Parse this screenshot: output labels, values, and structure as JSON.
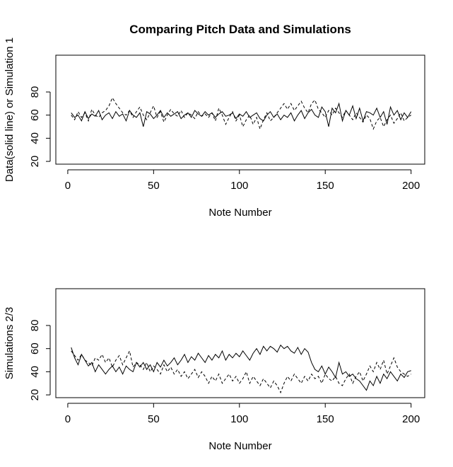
{
  "chart_data": [
    {
      "type": "line",
      "title": "Comparing Pitch Data and Simulations",
      "xlabel": "Note Number",
      "ylabel": "Data(solid line) or Simulation 1",
      "x": [
        2,
        4,
        6,
        8,
        10,
        12,
        14,
        16,
        18,
        20,
        22,
        24,
        26,
        28,
        30,
        32,
        34,
        36,
        38,
        40,
        42,
        44,
        46,
        48,
        50,
        52,
        54,
        56,
        58,
        60,
        62,
        64,
        66,
        68,
        70,
        72,
        74,
        76,
        78,
        80,
        82,
        84,
        86,
        88,
        90,
        92,
        94,
        96,
        98,
        100,
        102,
        104,
        106,
        108,
        110,
        112,
        114,
        116,
        118,
        120,
        122,
        124,
        126,
        128,
        130,
        132,
        134,
        136,
        138,
        140,
        142,
        144,
        146,
        148,
        150,
        152,
        154,
        156,
        158,
        160,
        162,
        164,
        166,
        168,
        170,
        172,
        174,
        176,
        178,
        180,
        182,
        184,
        186,
        188,
        190,
        192,
        194,
        196,
        198,
        200
      ],
      "series": [
        {
          "color": "#000000",
          "linestyle": "solid",
          "values": [
            62,
            58,
            60,
            55,
            63,
            57,
            61,
            59,
            64,
            56,
            60,
            62,
            57,
            63,
            59,
            61,
            55,
            64,
            60,
            58,
            62,
            50,
            63,
            61,
            57,
            60,
            64,
            58,
            62,
            59,
            61,
            63,
            57,
            60,
            62,
            58,
            64,
            61,
            59,
            63,
            60,
            62,
            58,
            61,
            63,
            59,
            60,
            62,
            57,
            61,
            59,
            63,
            58,
            60,
            62,
            57,
            55,
            60,
            63,
            58,
            61,
            56,
            60,
            58,
            62,
            55,
            60,
            64,
            57,
            62,
            65,
            60,
            58,
            67,
            63,
            50,
            66,
            62,
            70,
            55,
            64,
            60,
            68,
            57,
            66,
            55,
            63,
            62,
            60,
            66,
            58,
            63,
            52,
            67,
            60,
            64,
            56,
            62,
            58,
            63
          ]
        },
        {
          "color": "#000000",
          "linestyle": "dashed",
          "values": [
            60,
            56,
            63,
            58,
            62,
            55,
            65,
            60,
            58,
            62,
            64,
            68,
            75,
            70,
            66,
            62,
            60,
            64,
            58,
            63,
            67,
            60,
            56,
            62,
            68,
            58,
            63,
            54,
            60,
            65,
            61,
            59,
            64,
            58,
            62,
            60,
            57,
            63,
            59,
            61,
            58,
            62,
            55,
            66,
            60,
            52,
            58,
            63,
            55,
            60,
            50,
            56,
            60,
            52,
            58,
            48,
            56,
            62,
            55,
            58,
            62,
            66,
            70,
            65,
            70,
            64,
            68,
            72,
            66,
            62,
            70,
            73,
            65,
            62,
            58,
            64,
            60,
            66,
            62,
            58,
            64,
            60,
            56,
            62,
            58,
            54,
            60,
            57,
            48,
            55,
            58,
            50,
            56,
            60,
            53,
            57,
            62,
            55,
            58,
            60
          ]
        }
      ],
      "xlim": [
        -6.96,
        207.96
      ],
      "xticks": [
        0,
        50,
        100,
        150,
        200
      ],
      "ylim": [
        17.6,
        111.8
      ],
      "yticks": [
        20,
        40,
        60,
        80
      ]
    },
    {
      "type": "line",
      "xlabel": "Note Number",
      "ylabel": "Simulations 2/3",
      "x": [
        2,
        4,
        6,
        8,
        10,
        12,
        14,
        16,
        18,
        20,
        22,
        24,
        26,
        28,
        30,
        32,
        34,
        36,
        38,
        40,
        42,
        44,
        46,
        48,
        50,
        52,
        54,
        56,
        58,
        60,
        62,
        64,
        66,
        68,
        70,
        72,
        74,
        76,
        78,
        80,
        82,
        84,
        86,
        88,
        90,
        92,
        94,
        96,
        98,
        100,
        102,
        104,
        106,
        108,
        110,
        112,
        114,
        116,
        118,
        120,
        122,
        124,
        126,
        128,
        130,
        132,
        134,
        136,
        138,
        140,
        142,
        144,
        146,
        148,
        150,
        152,
        154,
        156,
        158,
        160,
        162,
        164,
        166,
        168,
        170,
        172,
        174,
        176,
        178,
        180,
        182,
        184,
        186,
        188,
        190,
        192,
        194,
        196,
        198,
        200
      ],
      "series": [
        {
          "color": "#000000",
          "linestyle": "solid",
          "values": [
            61,
            52,
            46,
            55,
            50,
            45,
            48,
            40,
            46,
            42,
            38,
            42,
            45,
            40,
            44,
            38,
            45,
            42,
            40,
            48,
            44,
            48,
            42,
            46,
            40,
            48,
            44,
            50,
            45,
            48,
            52,
            46,
            50,
            55,
            48,
            53,
            50,
            56,
            52,
            48,
            54,
            50,
            55,
            52,
            58,
            50,
            55,
            52,
            56,
            53,
            58,
            54,
            50,
            56,
            60,
            55,
            62,
            58,
            62,
            60,
            57,
            63,
            60,
            62,
            58,
            56,
            61,
            55,
            60,
            57,
            48,
            42,
            40,
            45,
            38,
            44,
            40,
            35,
            48,
            38,
            40,
            36,
            38,
            34,
            32,
            28,
            24,
            32,
            28,
            36,
            30,
            38,
            34,
            40,
            36,
            32,
            38,
            35,
            40,
            41
          ]
        },
        {
          "color": "#000000",
          "linestyle": "dashed",
          "values": [
            58,
            54,
            50,
            55,
            50,
            48,
            45,
            52,
            50,
            55,
            48,
            52,
            44,
            50,
            54,
            46,
            52,
            58,
            44,
            48,
            46,
            42,
            48,
            40,
            45,
            42,
            38,
            46,
            40,
            44,
            38,
            42,
            36,
            40,
            34,
            38,
            42,
            35,
            40,
            36,
            30,
            36,
            32,
            38,
            30,
            34,
            38,
            32,
            36,
            30,
            34,
            40,
            30,
            36,
            32,
            28,
            34,
            30,
            26,
            32,
            28,
            22,
            30,
            36,
            32,
            38,
            34,
            30,
            36,
            32,
            38,
            34,
            36,
            30,
            38,
            34,
            32,
            36,
            30,
            28,
            34,
            38,
            30,
            36,
            40,
            32,
            38,
            45,
            40,
            48,
            42,
            50,
            38,
            45,
            52,
            44,
            40,
            38,
            36,
            38
          ]
        }
      ],
      "xlim": [
        -6.96,
        207.96
      ],
      "xticks": [
        0,
        50,
        100,
        150,
        200
      ],
      "ylim": [
        17.6,
        111.8
      ],
      "yticks": [
        20,
        40,
        60,
        80
      ]
    }
  ]
}
